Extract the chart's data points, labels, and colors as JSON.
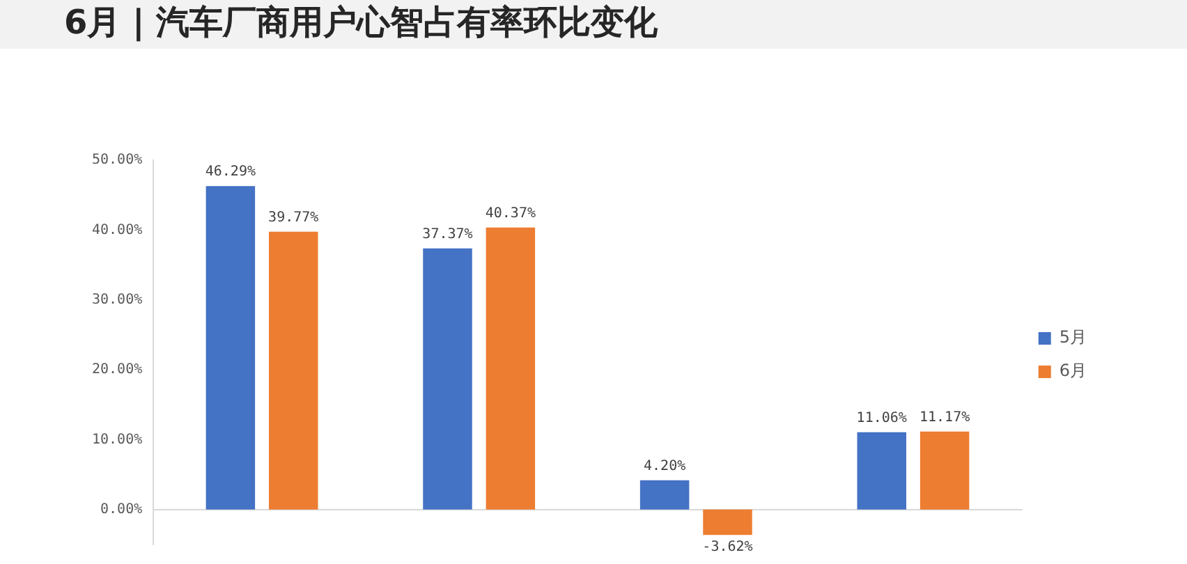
{
  "chart_data": {
    "type": "bar",
    "title": "6月 | 汽车厂商用户心智占有率环比变化",
    "categories": [
      null,
      null,
      null,
      null
    ],
    "series": [
      {
        "name": "5月",
        "color": "#4472c4",
        "values": [
          46.29,
          37.37,
          4.2,
          11.06
        ],
        "value_labels": [
          "46.29%",
          "37.37%",
          "4.20%",
          "11.06%"
        ]
      },
      {
        "name": "6月",
        "color": "#ed7d31",
        "values": [
          39.77,
          40.37,
          -3.62,
          11.17
        ],
        "value_labels": [
          "39.77%",
          "40.37%",
          "-3.62%",
          "11.17%"
        ]
      }
    ],
    "ylim": [
      -5,
      50
    ],
    "yticks": [
      {
        "value": 0,
        "label": "0.00%"
      },
      {
        "value": 10,
        "label": "10.00%"
      },
      {
        "value": 20,
        "label": "20.00%"
      },
      {
        "value": 30,
        "label": "30.00%"
      },
      {
        "value": 40,
        "label": "40.00%"
      },
      {
        "value": 50,
        "label": "50.00%"
      }
    ],
    "legend": "right"
  }
}
